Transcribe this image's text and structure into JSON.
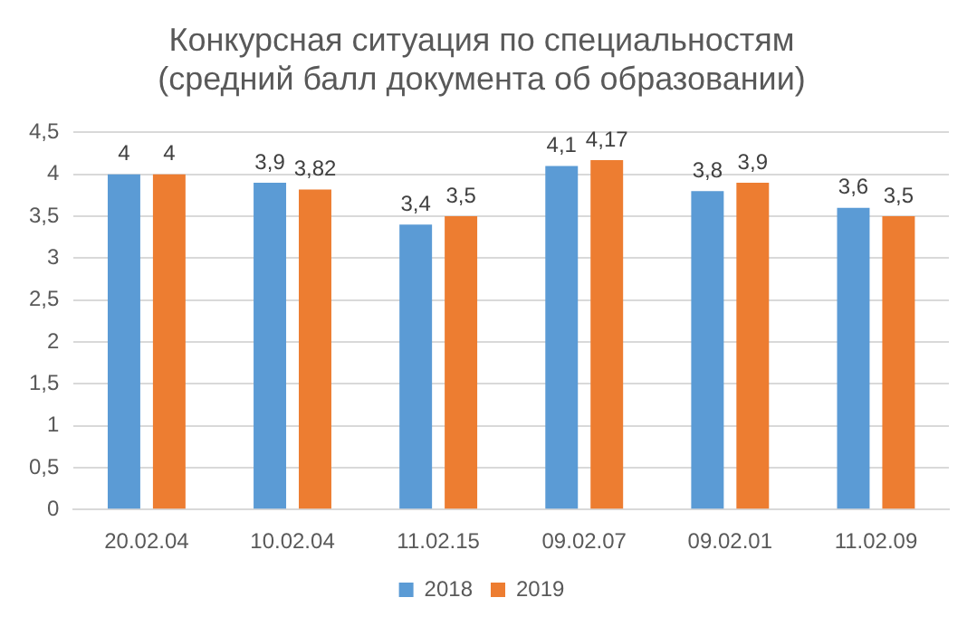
{
  "chart_data": {
    "type": "bar",
    "title": "Конкурсная ситуация по специальностям\n(средний балл документа об образовании)",
    "categories": [
      "20.02.04",
      "10.02.04",
      "11.02.15",
      "09.02.07",
      "09.02.01",
      "11.02.09"
    ],
    "series": [
      {
        "name": "2018",
        "color": "#5b9bd5",
        "values": [
          4,
          3.9,
          3.4,
          4.1,
          3.8,
          3.6
        ],
        "value_labels": [
          "4",
          "3,9",
          "3,4",
          "4,1",
          "3,8",
          "3,6"
        ]
      },
      {
        "name": "2019",
        "color": "#ed7d31",
        "values": [
          4,
          3.82,
          3.5,
          4.17,
          3.9,
          3.5
        ],
        "value_labels": [
          "4",
          "3,82",
          "3,5",
          "4,17",
          "3,9",
          "3,5"
        ]
      }
    ],
    "ylim": [
      0,
      4.5
    ],
    "yticks": [
      0,
      {
        "value": 0.5,
        "label": "0,5"
      },
      1,
      {
        "value": 1.5,
        "label": "1,5"
      },
      2,
      {
        "value": 2.5,
        "label": "2,5"
      },
      3,
      {
        "value": 3.5,
        "label": "3,5"
      },
      4,
      {
        "value": 4.5,
        "label": "4,5"
      }
    ],
    "grid": "y",
    "legend": "bottom"
  }
}
